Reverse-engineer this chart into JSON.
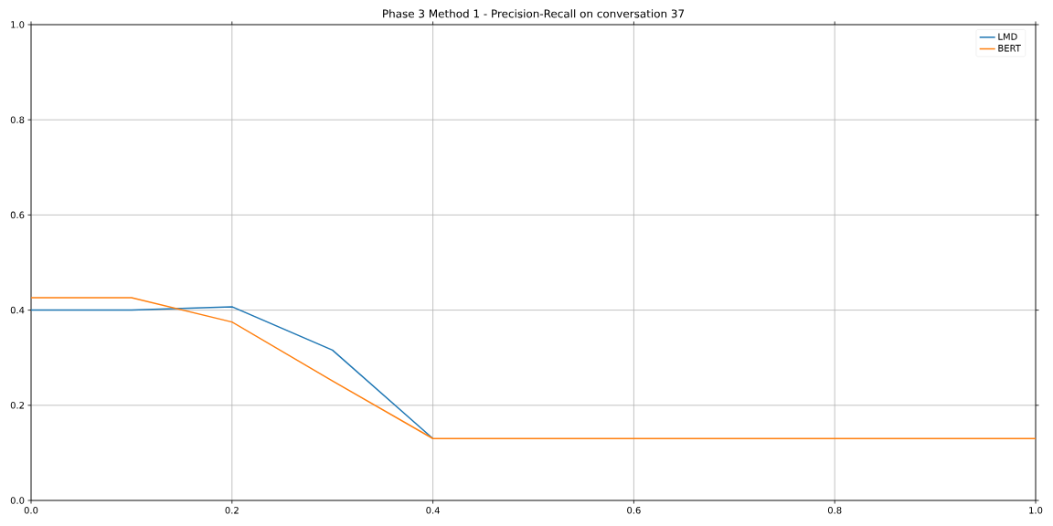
{
  "chart_data": {
    "type": "line",
    "title": "Phase 3 Method 1 - Precision-Recall on conversation 37",
    "x": [
      0.0,
      0.1,
      0.2,
      0.3,
      0.4,
      0.5,
      0.6,
      0.7,
      0.8,
      0.9,
      1.0
    ],
    "series": [
      {
        "name": "LMD",
        "color": "#1f77b4",
        "values": [
          0.4,
          0.4,
          0.407,
          0.316,
          0.13,
          null,
          null,
          null,
          null,
          null,
          null
        ]
      },
      {
        "name": "BERT",
        "color": "#ff7f0e",
        "values": [
          0.426,
          0.426,
          0.375,
          0.251,
          0.13,
          0.13,
          0.13,
          0.13,
          0.13,
          0.13,
          0.13
        ]
      }
    ],
    "xlim": [
      0,
      1
    ],
    "ylim": [
      0,
      1
    ],
    "xticks": [
      {
        "value": 0,
        "label": "0.0"
      },
      {
        "value": 0.2,
        "label": "0.2"
      },
      {
        "value": 0.4,
        "label": "0.4"
      },
      {
        "value": 0.6,
        "label": "0.6"
      },
      {
        "value": 0.8,
        "label": "0.8"
      },
      {
        "value": 1,
        "label": "1.0"
      }
    ],
    "yticks": [
      {
        "value": 0,
        "label": "0.0"
      },
      {
        "value": 0.2,
        "label": "0.2"
      },
      {
        "value": 0.4,
        "label": "0.4"
      },
      {
        "value": 0.6,
        "label": "0.6"
      },
      {
        "value": 0.8,
        "label": "0.8"
      },
      {
        "value": 1,
        "label": "1.0"
      }
    ],
    "grid": true,
    "legend": "top right",
    "marker": "none",
    "line_style": "solid"
  }
}
